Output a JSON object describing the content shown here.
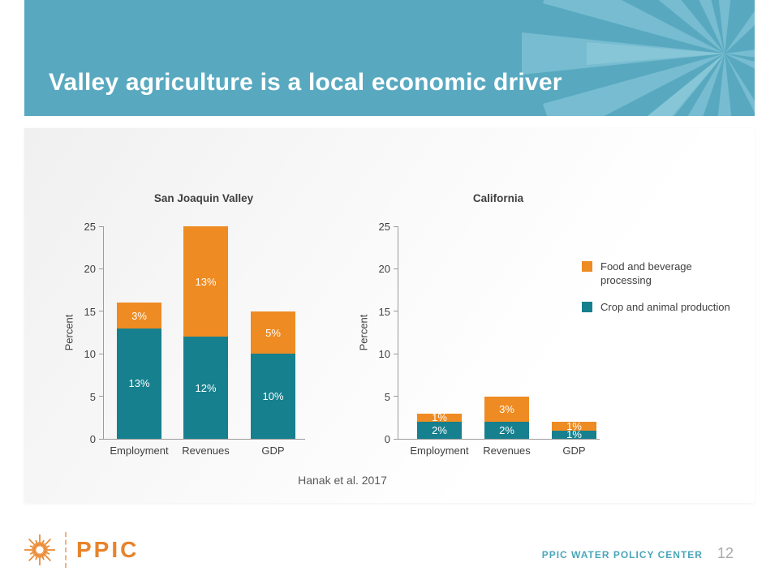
{
  "slide": {
    "title": "Valley agriculture is a local economic driver",
    "source": "Hanak et al. 2017",
    "footer_brand": "PPIC",
    "footer_center_label": "PPIC WATER POLICY CENTER",
    "page_number": "12"
  },
  "colors": {
    "banner": "#58a9c0",
    "banner_ray": "#7bbfd2",
    "orange": "#ee8b22",
    "teal": "#16808e",
    "axis": "#9b9b9b",
    "text_dark": "#3f3f3f",
    "source_gray": "#595959",
    "brand_orange": "#e8832a",
    "footer_teal": "#4aa6b8",
    "page_gray": "#a9a9a9"
  },
  "icons": {
    "banner_decoration": "starburst-rays",
    "footer_logo": "ppic-sunburst"
  },
  "chart_data": [
    {
      "type": "bar",
      "stacked": true,
      "title": "San Joaquin Valley",
      "xlabel": "",
      "ylabel": "Percent",
      "ylim": [
        0,
        25
      ],
      "yticks": [
        0,
        5,
        10,
        15,
        20,
        25
      ],
      "grid": false,
      "categories": [
        "Employment",
        "Revenues",
        "GDP"
      ],
      "series": [
        {
          "name": "Crop and animal production",
          "color": "#16808e",
          "values": [
            13,
            12,
            10
          ],
          "labels": [
            "13%",
            "12%",
            "10%"
          ]
        },
        {
          "name": "Food and beverage processing",
          "color": "#ee8b22",
          "values": [
            3,
            13,
            5
          ],
          "labels": [
            "3%",
            "13%",
            "5%"
          ]
        }
      ]
    },
    {
      "type": "bar",
      "stacked": true,
      "title": "California",
      "xlabel": "",
      "ylabel": "Percent",
      "ylim": [
        0,
        25
      ],
      "yticks": [
        0,
        5,
        10,
        15,
        20,
        25
      ],
      "grid": false,
      "legend_position": "right",
      "categories": [
        "Employment",
        "Revenues",
        "GDP"
      ],
      "series": [
        {
          "name": "Crop and animal production",
          "color": "#16808e",
          "values": [
            2,
            2,
            1
          ],
          "labels": [
            "2%",
            "2%",
            "1%"
          ]
        },
        {
          "name": "Food and beverage processing",
          "color": "#ee8b22",
          "values": [
            1,
            3,
            1
          ],
          "labels": [
            "1%",
            "3%",
            "1%"
          ]
        }
      ],
      "legend": [
        {
          "label": "Food and beverage processing",
          "color": "#ee8b22"
        },
        {
          "label": "Crop and animal production",
          "color": "#16808e"
        }
      ]
    }
  ]
}
